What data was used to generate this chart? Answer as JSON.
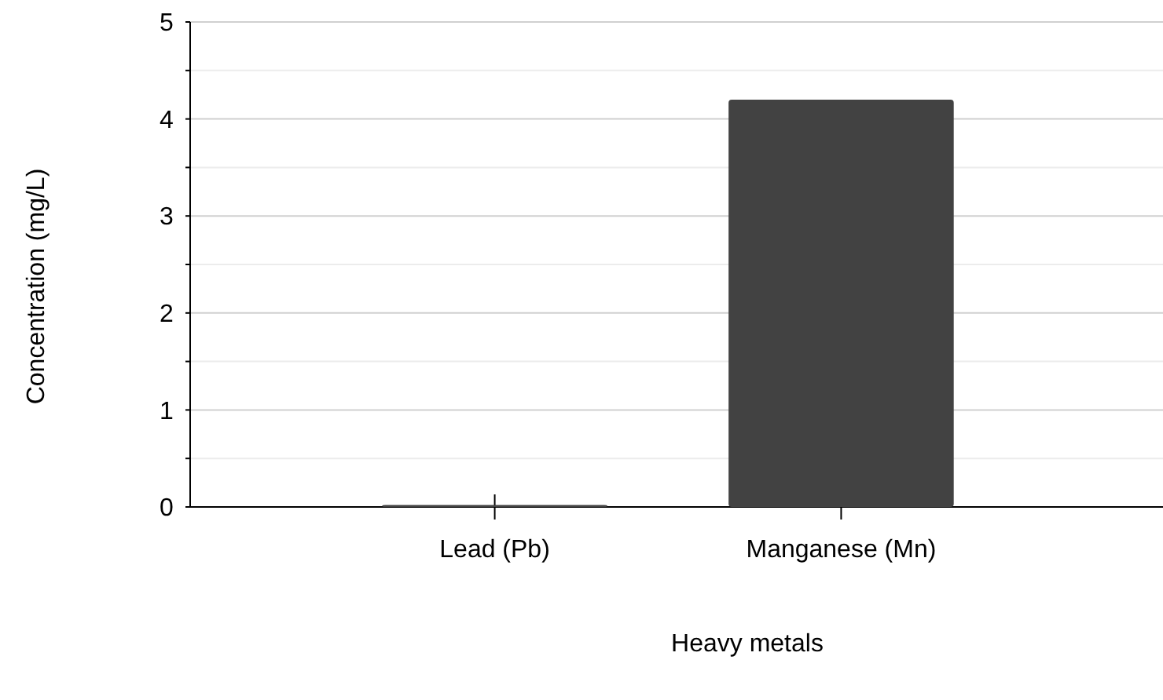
{
  "chart_data": {
    "type": "bar",
    "xlabel": "Heavy metals",
    "ylabel": "Concentration (mg/L)",
    "categories": [
      "Lead (Pb)",
      "Manganese (Mn)"
    ],
    "values": [
      0.02,
      4.2
    ],
    "color": "#424242",
    "ylim": [
      0,
      5
    ],
    "yticks": [
      0,
      {
        "value": 0.5,
        "label": null
      },
      1,
      {
        "value": 1.5,
        "label": null
      },
      2,
      {
        "value": 2.5,
        "label": null
      },
      3,
      {
        "value": 3.5,
        "label": null
      },
      4,
      {
        "value": 4.5,
        "label": null
      },
      5
    ],
    "grid": "y"
  }
}
